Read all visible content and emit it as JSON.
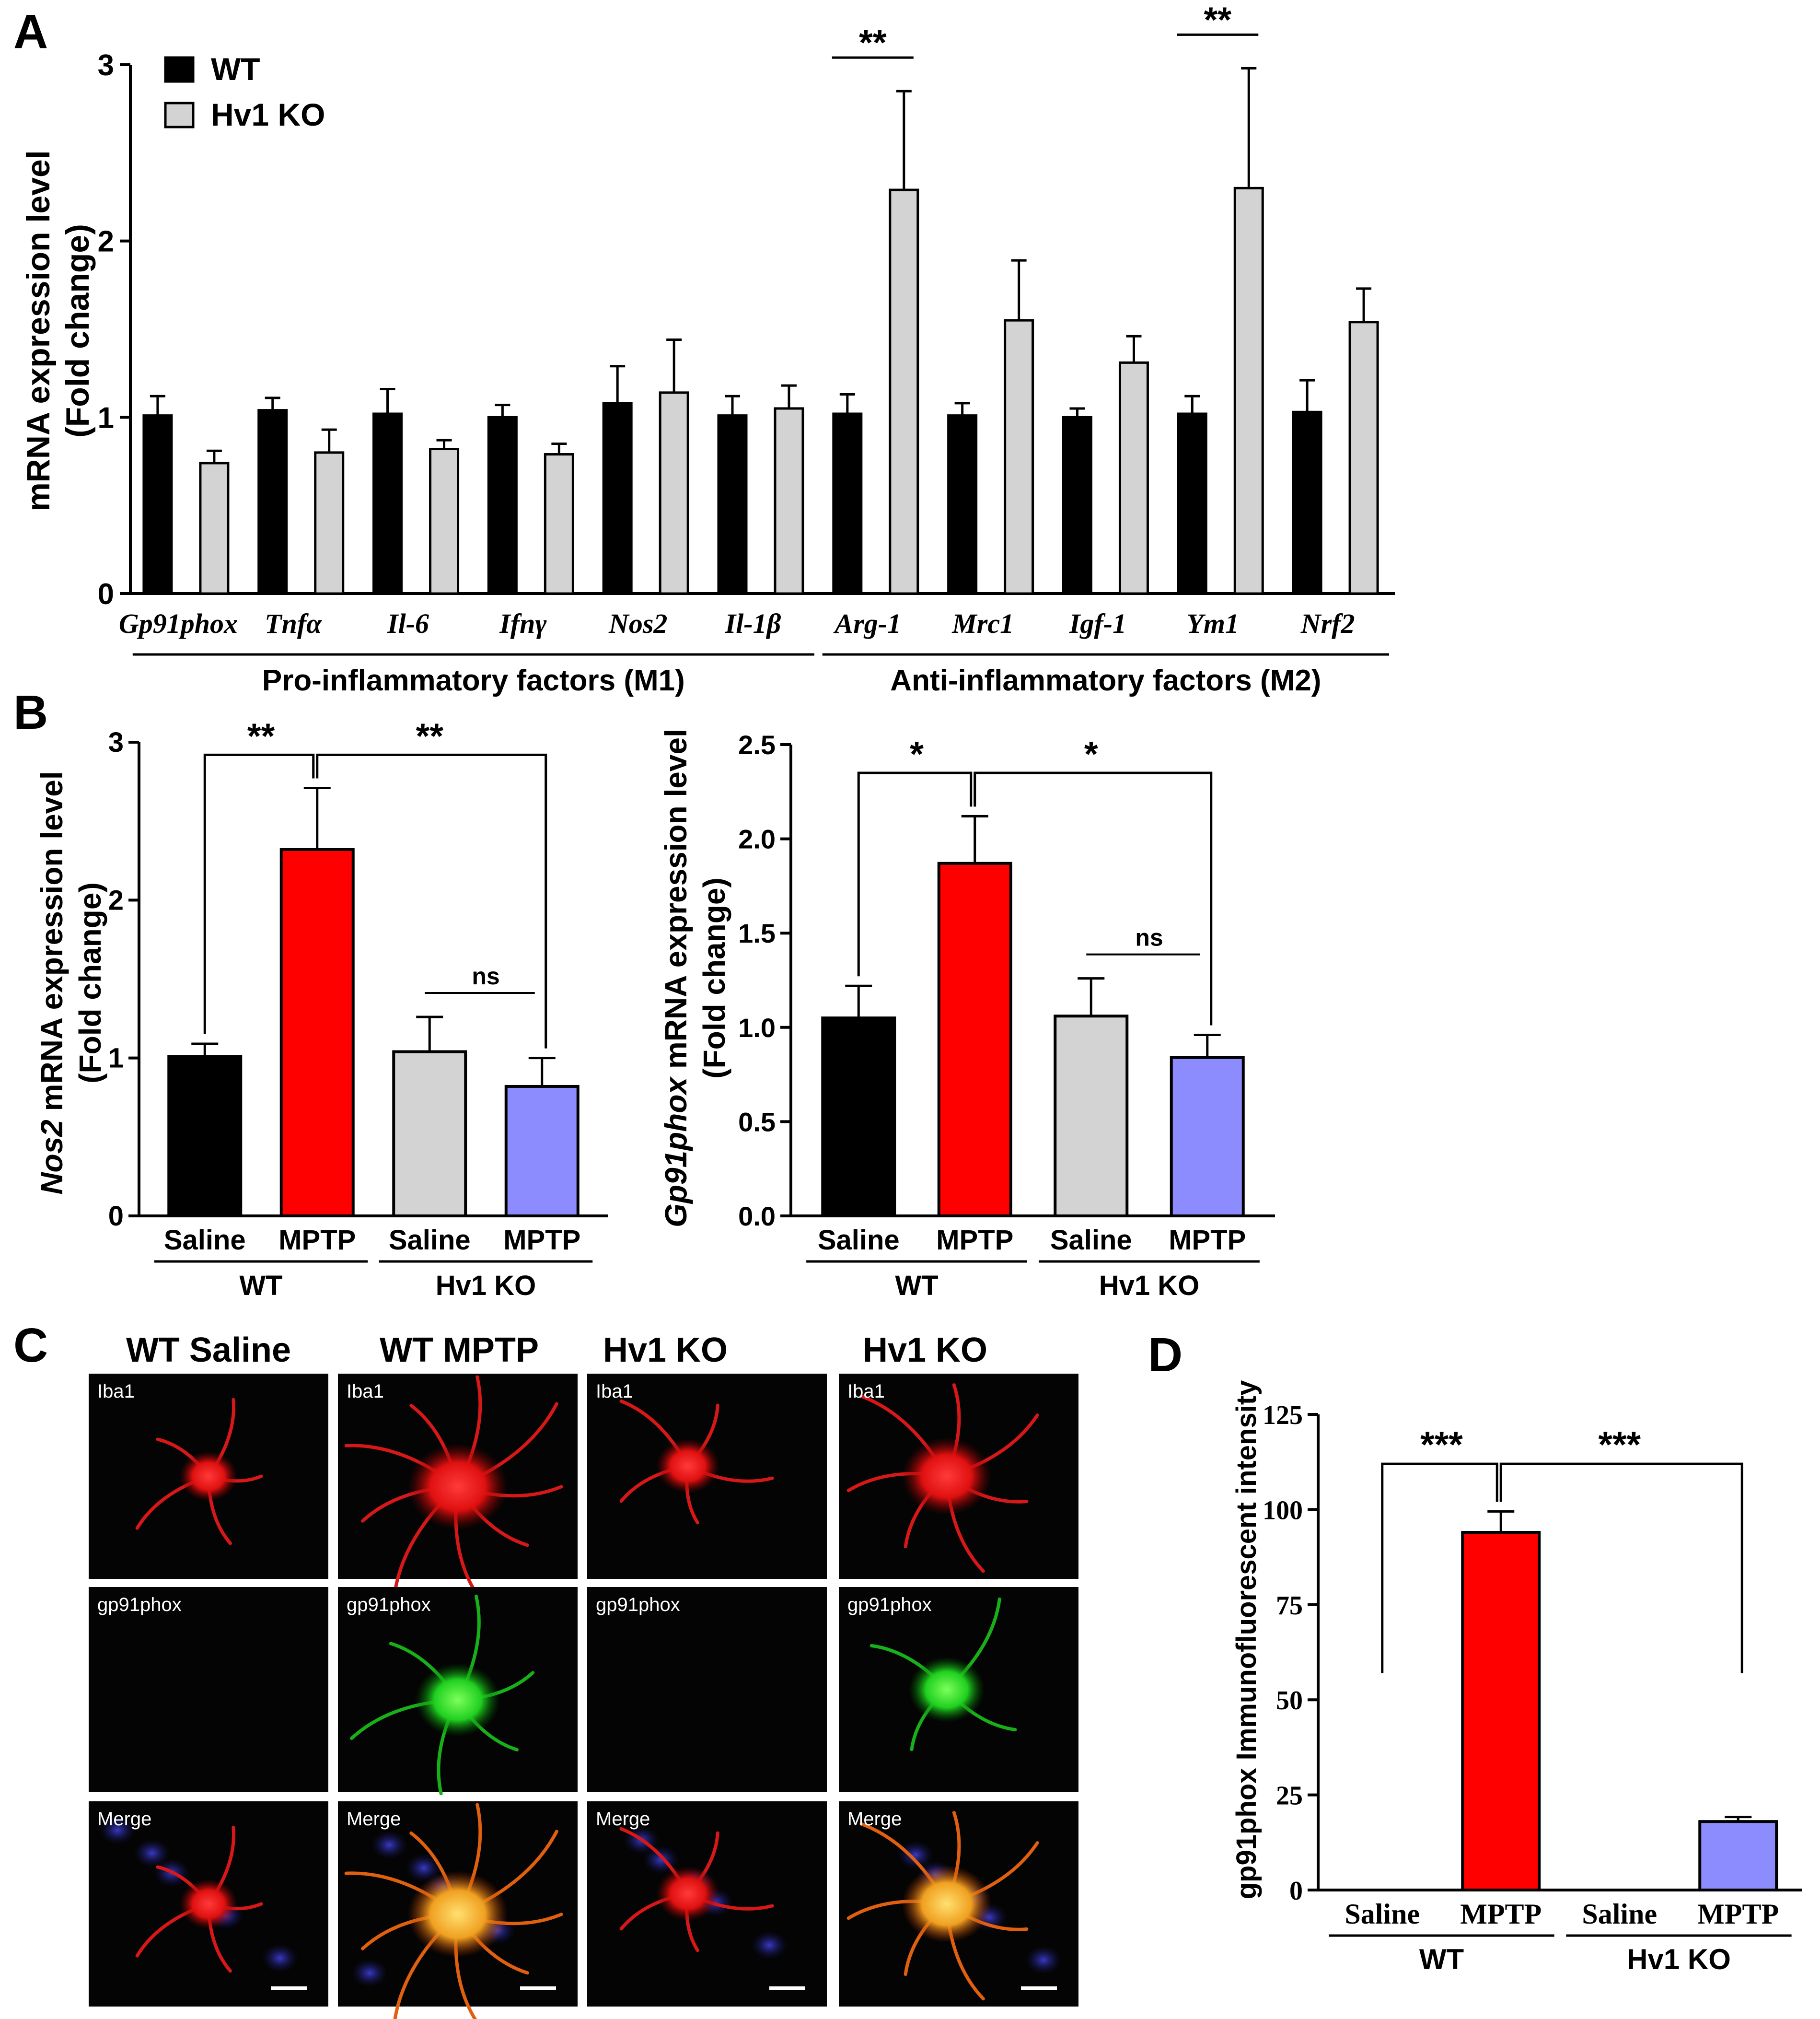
{
  "panel_labels": {
    "a": "A",
    "b": "B",
    "c": "C",
    "d": "D"
  },
  "colors": {
    "wt": "#000000",
    "ko": "#d3d3d3",
    "saline": "#000000",
    "mptp": "#ff0000",
    "ko_saline": "#d3d3d3",
    "ko_mptp": "#8c8cff",
    "iba1": "#ff2020",
    "gp91": "#30ff30",
    "dapi": "#2a2aa0"
  },
  "chart_data": [
    {
      "id": "A",
      "type": "bar",
      "ylabel_line1": "mRNA expression level",
      "ylabel_line2": "(Fold change)",
      "ylim": [
        0,
        3
      ],
      "yticks": [
        "0",
        "1",
        "2",
        "3"
      ],
      "categories": [
        "Gp91phox",
        "Tnfα",
        "Il-6",
        "Ifnγ",
        "Nos2",
        "Il-1β",
        "Arg-1",
        "Mrc1",
        "Igf-1",
        "Ym1",
        "Nrf2"
      ],
      "series": [
        {
          "name": "WT",
          "values": [
            1.01,
            1.04,
            1.02,
            1.0,
            1.08,
            1.01,
            1.02,
            1.01,
            1.0,
            1.02,
            1.03
          ],
          "errors": [
            0.11,
            0.07,
            0.14,
            0.07,
            0.21,
            0.11,
            0.11,
            0.07,
            0.05,
            0.1,
            0.18
          ]
        },
        {
          "name": "Hv1 KO",
          "values": [
            0.74,
            0.8,
            0.82,
            0.79,
            1.14,
            1.05,
            2.29,
            1.55,
            1.31,
            2.3,
            1.54
          ],
          "errors": [
            0.07,
            0.13,
            0.05,
            0.06,
            0.3,
            0.13,
            0.56,
            0.34,
            0.15,
            0.68,
            0.19
          ]
        }
      ],
      "significance": [
        {
          "category": "Arg-1",
          "text": "**"
        },
        {
          "category": "Ym1",
          "text": "**"
        }
      ],
      "groups": [
        {
          "label": "Pro-inflammatory factors (M1)",
          "from": "Gp91phox",
          "to": "Il-1β"
        },
        {
          "label": "Anti-inflammatory factors (M2)",
          "from": "Arg-1",
          "to": "Nrf2"
        }
      ]
    },
    {
      "id": "B1",
      "type": "bar",
      "ylabel_gene": "Nos2",
      "ylabel_rest": " mRNA expression level",
      "ylabel_line2": "(Fold change)",
      "ylim": [
        0,
        3
      ],
      "yticks": [
        "0",
        "1",
        "2",
        "3"
      ],
      "categories": [
        "Saline",
        "MPTP",
        "Saline",
        "MPTP"
      ],
      "groups": [
        "WT",
        "Hv1 KO"
      ],
      "values": [
        1.01,
        2.32,
        1.04,
        0.82
      ],
      "errors": [
        0.08,
        0.39,
        0.22,
        0.18
      ],
      "significance": [
        {
          "from": 0,
          "to": 1,
          "text": "**"
        },
        {
          "from": 1,
          "to": 3,
          "text": "**"
        },
        {
          "from": 2,
          "to": 3,
          "text": "ns"
        }
      ]
    },
    {
      "id": "B2",
      "type": "bar",
      "ylabel_gene": "Gp91phox",
      "ylabel_rest": " mRNA expression level",
      "ylabel_line2": "(Fold change)",
      "ylim": [
        0,
        2.5
      ],
      "yticks": [
        "0.0",
        "0.5",
        "1.0",
        "1.5",
        "2.0",
        "2.5"
      ],
      "categories": [
        "Saline",
        "MPTP",
        "Saline",
        "MPTP"
      ],
      "groups": [
        "WT",
        "Hv1 KO"
      ],
      "values": [
        1.05,
        1.87,
        1.06,
        0.84
      ],
      "errors": [
        0.17,
        0.25,
        0.2,
        0.12
      ],
      "significance": [
        {
          "from": 0,
          "to": 1,
          "text": "*"
        },
        {
          "from": 1,
          "to": 3,
          "text": "*"
        },
        {
          "from": 2,
          "to": 3,
          "text": "ns"
        }
      ]
    },
    {
      "id": "D",
      "type": "bar",
      "ylabel": "gp91phox Immunofluorescent intensity",
      "ylim": [
        0,
        125
      ],
      "yticks": [
        "0",
        "25",
        "50",
        "75",
        "100",
        "125"
      ],
      "categories": [
        "Saline",
        "MPTP",
        "Saline",
        "MPTP"
      ],
      "groups": [
        "WT",
        "Hv1 KO"
      ],
      "values": [
        0,
        94,
        0,
        18
      ],
      "errors": [
        0,
        5.5,
        0,
        1.2
      ],
      "significance": [
        {
          "from": 0,
          "to": 1,
          "text": "***"
        },
        {
          "from": 1,
          "to": 3,
          "text": "***"
        }
      ]
    }
  ],
  "panel_c": {
    "column_titles": [
      "WT Saline",
      "WT MPTP",
      "Hv1 KO",
      "Hv1 KO"
    ],
    "row_labels": [
      "Iba1",
      "gp91phox",
      "Merge"
    ]
  }
}
